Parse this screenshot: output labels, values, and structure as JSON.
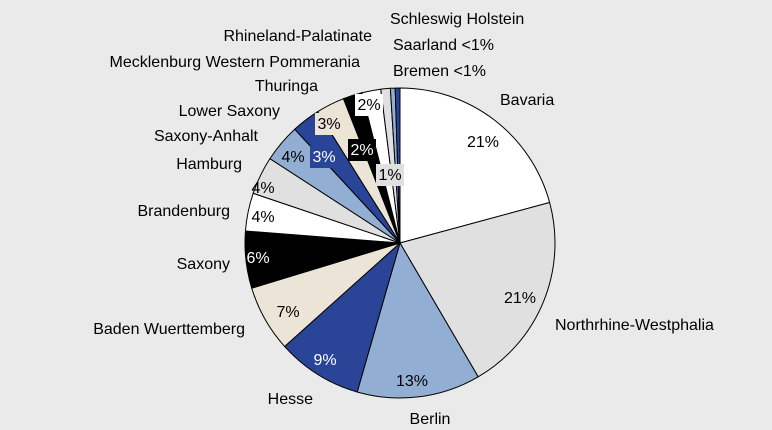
{
  "chart_data": {
    "type": "pie",
    "categories": [
      "Bavaria",
      "Northrhine-Westphalia",
      "Berlin",
      "Hesse",
      "Baden Wuerttemberg",
      "Saxony",
      "Brandenburg",
      "Hamburg",
      "Saxony-Anhalt",
      "Lower Saxony",
      "Thuringa",
      "Mecklenburg Western Pommerania",
      "Rhineland-Palatinate",
      "Schleswig Holstein",
      "Saarland <1%",
      "Bremen <1%"
    ],
    "values": [
      21,
      21,
      13,
      9,
      7,
      6,
      4,
      4,
      4,
      3,
      3,
      2,
      2,
      1,
      0.5,
      0.5
    ],
    "value_labels": [
      "21%",
      "21%",
      "13%",
      "9%",
      "7%",
      "6%",
      "4%",
      "4%",
      "4%",
      "3%",
      "3%",
      "2%",
      "2%",
      "1%",
      null,
      null
    ],
    "colors": [
      "#ffffff",
      "#e0e0e0",
      "#93aed3",
      "#2a4597",
      "#ece4d6",
      "#000000",
      "#ffffff",
      "#e0e0e0",
      "#93aed3",
      "#2a4597",
      "#ece4d6",
      "#000000",
      "#ffffff",
      "#e0e0e0",
      "#93aed3",
      "#2a4597"
    ]
  }
}
